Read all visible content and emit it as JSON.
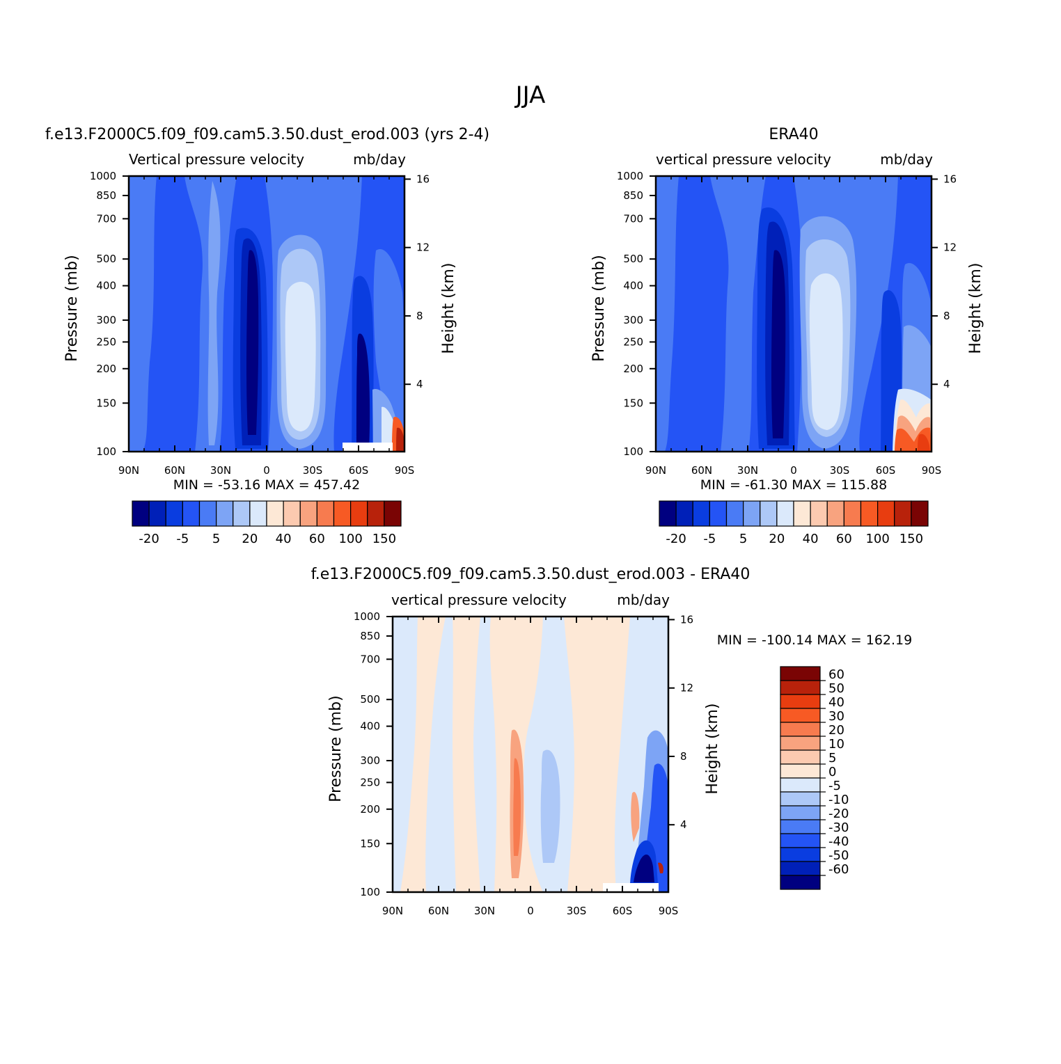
{
  "page": {
    "title": "JJA"
  },
  "axes": {
    "x_ticks": [
      "90N",
      "60N",
      "30N",
      "0",
      "30S",
      "60S",
      "90S"
    ],
    "p_ticks": [
      "100",
      "150",
      "200",
      "250",
      "300",
      "400",
      "500",
      "700",
      "850",
      "1000"
    ],
    "h_ticks": [
      "16",
      "12",
      "8",
      "4"
    ],
    "left_label": "Pressure (mb)",
    "right_label": "Height (km)"
  },
  "chart_data": [
    {
      "type": "heatmap",
      "title": "f.e13.F2000C5.f09_f09.cam5.3.50.dust_erod.003 (yrs 2-4)",
      "subtitle_left": "Vertical pressure velocity",
      "subtitle_right": "mb/day",
      "ylabel": "Pressure (mb)",
      "ylabel_right": "Height (km)",
      "x_range": [
        "90N",
        "90S"
      ],
      "y_range_mb": [
        1000,
        100
      ],
      "stats": "MIN = -53.16   MAX = 457.42",
      "colorbar": {
        "orientation": "horizontal",
        "labels": [
          "-20",
          "-5",
          "5",
          "20",
          "40",
          "60",
          "100",
          "150"
        ],
        "colors": [
          "#000080",
          "#0020b8",
          "#0a3de0",
          "#2454f5",
          "#4a7bf5",
          "#7da4f5",
          "#adc8f7",
          "#dbe9fb",
          "#fde8d6",
          "#fccab0",
          "#f8a37f",
          "#f77b4f",
          "#f75a24",
          "#e83d10",
          "#b8220b",
          "#7a0404"
        ]
      }
    },
    {
      "type": "heatmap",
      "title": "ERA40",
      "subtitle_left": "vertical pressure velocity",
      "subtitle_right": "mb/day",
      "ylabel": "Pressure (mb)",
      "ylabel_right": "Height (km)",
      "x_range": [
        "90N",
        "90S"
      ],
      "y_range_mb": [
        1000,
        100
      ],
      "stats": "MIN = -61.30   MAX = 115.88",
      "colorbar": {
        "orientation": "horizontal",
        "labels": [
          "-20",
          "-5",
          "5",
          "20",
          "40",
          "60",
          "100",
          "150"
        ],
        "colors": [
          "#000080",
          "#0020b8",
          "#0a3de0",
          "#2454f5",
          "#4a7bf5",
          "#7da4f5",
          "#adc8f7",
          "#dbe9fb",
          "#fde8d6",
          "#fccab0",
          "#f8a37f",
          "#f77b4f",
          "#f75a24",
          "#e83d10",
          "#b8220b",
          "#7a0404"
        ]
      }
    },
    {
      "type": "heatmap",
      "title": "f.e13.F2000C5.f09_f09.cam5.3.50.dust_erod.003 - ERA40",
      "subtitle_left": "vertical pressure velocity",
      "subtitle_right": "mb/day",
      "ylabel": "Pressure (mb)",
      "ylabel_right": "Height (km)",
      "x_range": [
        "90N",
        "90S"
      ],
      "y_range_mb": [
        1000,
        100
      ],
      "stats": "MIN = -100.14   MAX = 162.19",
      "colorbar": {
        "orientation": "vertical",
        "labels": [
          "60",
          "50",
          "40",
          "30",
          "20",
          "10",
          "5",
          "0",
          "-5",
          "-10",
          "-20",
          "-30",
          "-40",
          "-50",
          "-60"
        ],
        "colors": [
          "#7a0404",
          "#b8220b",
          "#e83d10",
          "#f75a24",
          "#f77b4f",
          "#f8a37f",
          "#fccab0",
          "#fde8d6",
          "#dbe9fb",
          "#adc8f7",
          "#7da4f5",
          "#4a7bf5",
          "#2454f5",
          "#0a3de0",
          "#0020b8",
          "#000080"
        ]
      }
    }
  ]
}
